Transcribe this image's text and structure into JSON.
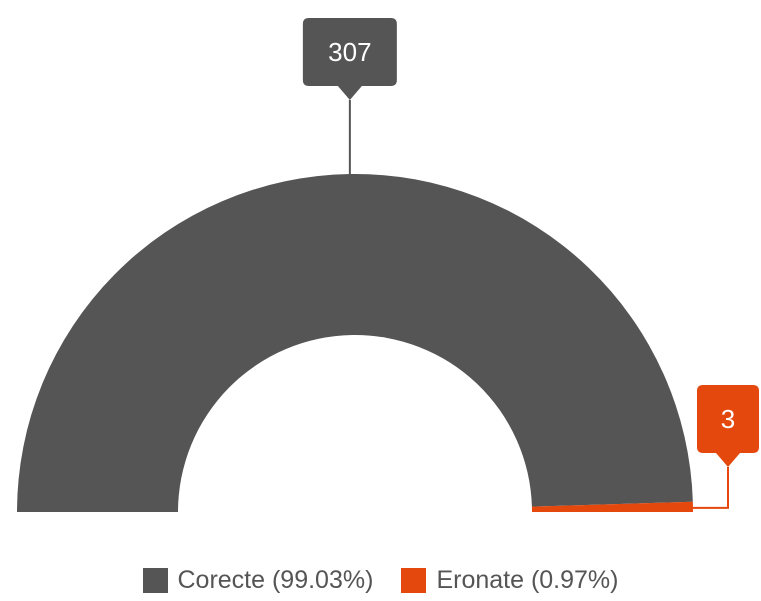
{
  "chart_data": {
    "type": "pie",
    "subtype": "semi-donut",
    "title": "",
    "series": [
      {
        "name": "Corecte",
        "value": 307,
        "percent": 99.03,
        "color": "#555555",
        "legend_label": "Corecte (99.03%)",
        "data_label": "307"
      },
      {
        "name": "Eronate",
        "value": 3,
        "percent": 0.97,
        "color": "#E5480D",
        "legend_label": "Eronate (0.97%)",
        "data_label": "3"
      }
    ],
    "legend_position": "bottom"
  }
}
